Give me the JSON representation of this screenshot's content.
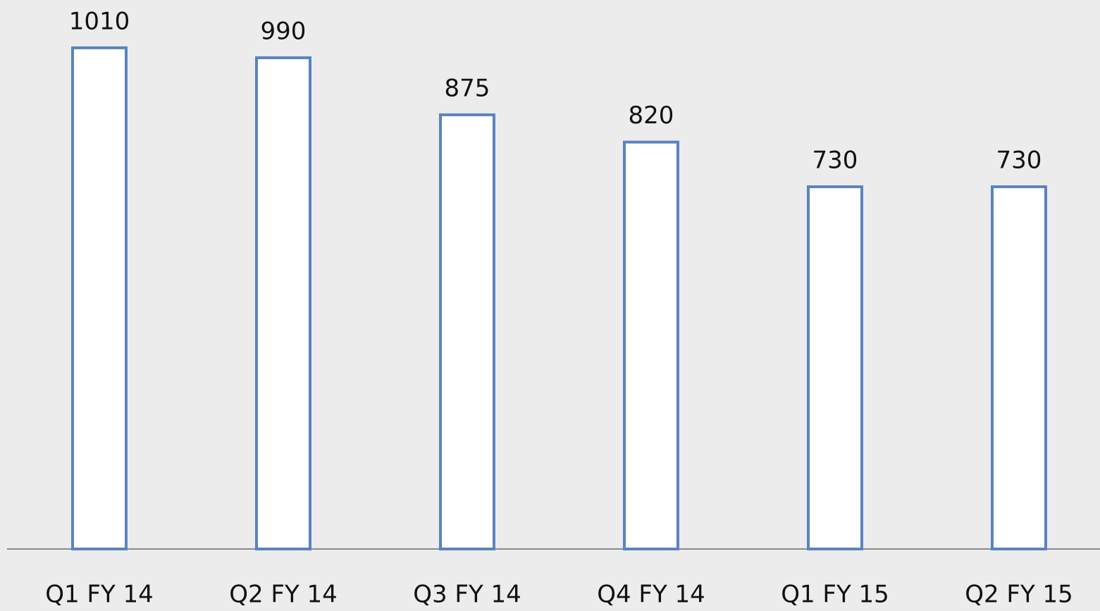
{
  "chart_data": {
    "type": "bar",
    "categories": [
      "Q1 FY 14",
      "Q2 FY 14",
      "Q3 FY 14",
      "Q4 FY 14",
      "Q1 FY 15",
      "Q2 FY 15"
    ],
    "values": [
      1010,
      990,
      875,
      820,
      730,
      730
    ],
    "color": "#5a84bd",
    "ylim": [
      0,
      1100
    ]
  }
}
